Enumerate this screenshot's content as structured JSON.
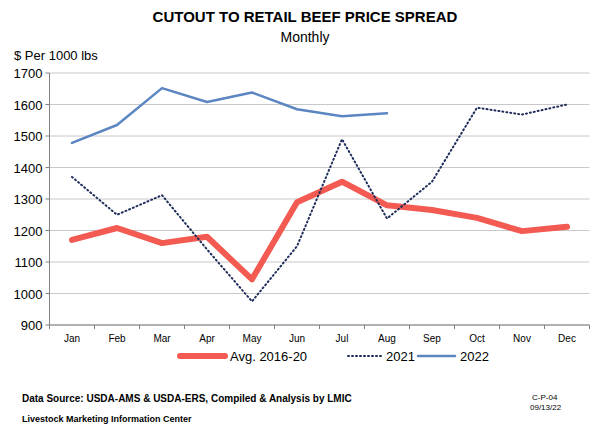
{
  "chart_data": {
    "type": "line",
    "title": "CUTOUT TO RETAIL BEEF PRICE SPREAD",
    "subtitle": "Monthly",
    "y_label": "$ Per 1000 lbs",
    "source": "Data Source:  USDA-AMS & USDA-ERS, Compiled & Analysis by LMIC",
    "organization": "Livestock Marketing Information Center",
    "chart_id": "C-P-04",
    "date": "09/13/22",
    "categories": [
      "Jan",
      "Feb",
      "Mar",
      "Apr",
      "May",
      "Jun",
      "Jul",
      "Aug",
      "Sep",
      "Oct",
      "Nov",
      "Dec"
    ],
    "series": [
      {
        "name": "Avg. 2016-20",
        "color": "#f25a52",
        "line_style": "thick",
        "values": [
          1170,
          1208,
          1160,
          1180,
          1045,
          1290,
          1355,
          1280,
          1265,
          1240,
          1198,
          1212
        ]
      },
      {
        "name": "2021",
        "color": "#1f2d5a",
        "line_style": "dotted",
        "values": [
          1370,
          1250,
          1312,
          1140,
          975,
          1150,
          1490,
          1238,
          1355,
          1590,
          1568,
          1600
        ]
      },
      {
        "name": "2022",
        "color": "#5b86c2",
        "line_style": "solid",
        "values": [
          1478,
          1535,
          1652,
          1608,
          1638,
          1585,
          1563,
          1572,
          null,
          null,
          null,
          null
        ]
      }
    ],
    "ylim": [
      900,
      1700
    ],
    "yticks": [
      900,
      1000,
      1100,
      1200,
      1300,
      1400,
      1500,
      1600,
      1700
    ],
    "grid": true,
    "legend": "bottom"
  }
}
